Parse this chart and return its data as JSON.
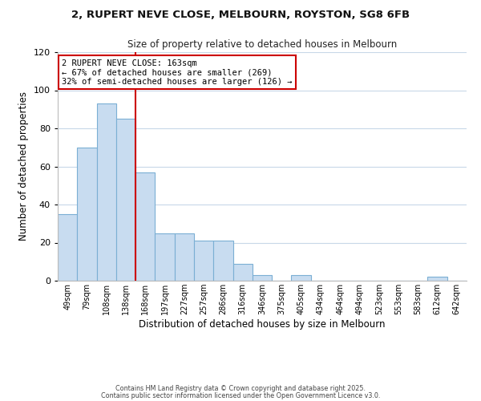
{
  "title": "2, RUPERT NEVE CLOSE, MELBOURN, ROYSTON, SG8 6FB",
  "subtitle": "Size of property relative to detached houses in Melbourn",
  "xlabel": "Distribution of detached houses by size in Melbourn",
  "ylabel": "Number of detached properties",
  "bar_values": [
    35,
    70,
    93,
    85,
    57,
    25,
    25,
    21,
    21,
    9,
    3,
    0,
    3,
    0,
    0,
    0,
    0,
    0,
    0,
    2,
    0
  ],
  "bar_labels": [
    "49sqm",
    "79sqm",
    "108sqm",
    "138sqm",
    "168sqm",
    "197sqm",
    "227sqm",
    "257sqm",
    "286sqm",
    "316sqm",
    "346sqm",
    "375sqm",
    "405sqm",
    "434sqm",
    "464sqm",
    "494sqm",
    "523sqm",
    "553sqm",
    "583sqm",
    "612sqm",
    "642sqm"
  ],
  "bar_color": "#c8dcf0",
  "bar_edgecolor": "#7bafd4",
  "vline_x_index": 4,
  "vline_color": "#cc0000",
  "ylim": [
    0,
    120
  ],
  "yticks": [
    0,
    20,
    40,
    60,
    80,
    100,
    120
  ],
  "annotation_title": "2 RUPERT NEVE CLOSE: 163sqm",
  "annotation_line1": "← 67% of detached houses are smaller (269)",
  "annotation_line2": "32% of semi-detached houses are larger (126) →",
  "annotation_box_color": "#ffffff",
  "annotation_box_edgecolor": "#cc0000",
  "footer1": "Contains HM Land Registry data © Crown copyright and database right 2025.",
  "footer2": "Contains public sector information licensed under the Open Government Licence v3.0.",
  "background_color": "#ffffff",
  "grid_color": "#c8d8e8"
}
